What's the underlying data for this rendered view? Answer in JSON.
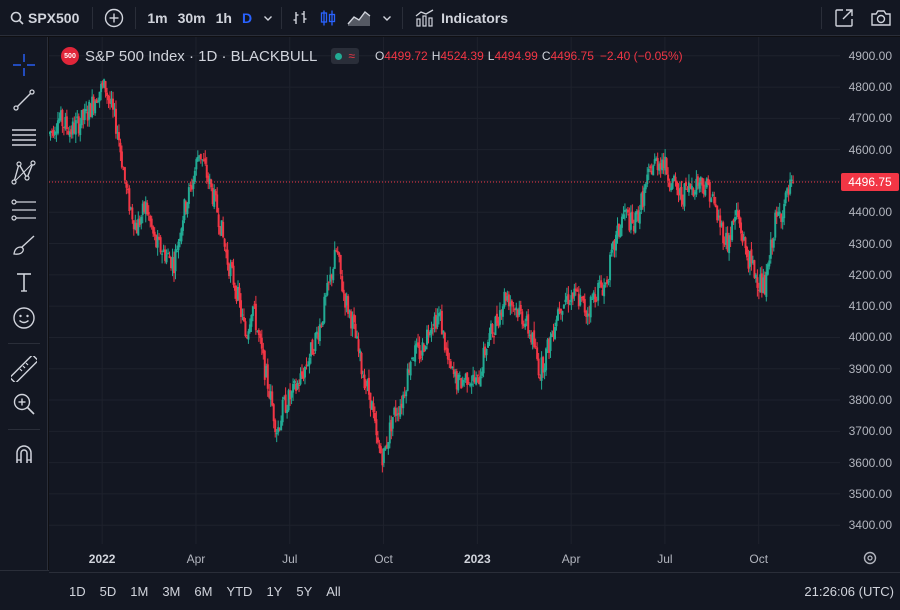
{
  "toolbar": {
    "symbol": "SPX500",
    "timeframes": [
      "1m",
      "30m",
      "1h",
      "D"
    ],
    "active_timeframe": "D",
    "indicators_label": "Indicators"
  },
  "legend": {
    "badge": "500",
    "title": "S&P 500 Index · 1D · BLACKBULL",
    "ohlc": [
      {
        "k": "O",
        "v": "4499.72"
      },
      {
        "k": "H",
        "v": "4524.39"
      },
      {
        "k": "L",
        "v": "4494.99"
      },
      {
        "k": "C",
        "v": "4496.75"
      }
    ],
    "change": "−2.40 (−0.05%)"
  },
  "last_price_label": "4496.75",
  "clock": "21:26:06 (UTC)",
  "ranges": [
    "1D",
    "5D",
    "1M",
    "3M",
    "6M",
    "YTD",
    "1Y",
    "5Y",
    "All"
  ],
  "colors": {
    "up": "#22ab94",
    "down": "#f23645",
    "accent": "#2962ff"
  },
  "chart_data": {
    "type": "candlestick",
    "title": "S&P 500 Index · 1D · BLACKBULL",
    "y_ticks": [
      3400,
      3500,
      3600,
      3700,
      3800,
      3900,
      4000,
      4100,
      4200,
      4300,
      4400,
      4500,
      4600,
      4700,
      4800,
      4900
    ],
    "y_tick_labels": [
      "3400.00",
      "3500.00",
      "3600.00",
      "3700.00",
      "3800.00",
      "3900.00",
      "4000.00",
      "4100.00",
      "4200.00",
      "4300.00",
      "4400.00",
      "4500.00",
      "4600.00",
      "4700.00",
      "4800.00",
      "4900.00"
    ],
    "ylim": [
      3340,
      4960
    ],
    "x_ticks": [
      {
        "label": "2022",
        "month": 3,
        "year": true
      },
      {
        "label": "Apr",
        "month": 6,
        "year": false
      },
      {
        "label": "Jul",
        "month": 9,
        "year": false
      },
      {
        "label": "Oct",
        "month": 12,
        "year": false
      },
      {
        "label": "2023",
        "month": 15,
        "year": true
      },
      {
        "label": "Apr",
        "month": 18,
        "year": false
      },
      {
        "label": "Jul",
        "month": 21,
        "year": false
      },
      {
        "label": "Oct",
        "month": 24,
        "year": false
      }
    ],
    "xlim_months": [
      1.3,
      26.6
    ],
    "last_close": 4496.75,
    "price_path": [
      [
        1.3,
        4650
      ],
      [
        1.6,
        4700
      ],
      [
        2.0,
        4660
      ],
      [
        2.5,
        4710
      ],
      [
        2.9,
        4790
      ],
      [
        3.1,
        4800
      ],
      [
        3.5,
        4660
      ],
      [
        3.8,
        4450
      ],
      [
        4.1,
        4350
      ],
      [
        4.4,
        4420
      ],
      [
        4.7,
        4300
      ],
      [
        5.0,
        4270
      ],
      [
        5.3,
        4240
      ],
      [
        5.6,
        4400
      ],
      [
        5.9,
        4500
      ],
      [
        6.1,
        4600
      ],
      [
        6.4,
        4500
      ],
      [
        6.7,
        4400
      ],
      [
        7.0,
        4250
      ],
      [
        7.3,
        4150
      ],
      [
        7.6,
        4000
      ],
      [
        7.8,
        4110
      ],
      [
        8.1,
        3950
      ],
      [
        8.3,
        3850
      ],
      [
        8.6,
        3700
      ],
      [
        8.8,
        3780
      ],
      [
        9.1,
        3820
      ],
      [
        9.4,
        3880
      ],
      [
        9.7,
        3960
      ],
      [
        10.0,
        4050
      ],
      [
        10.2,
        4140
      ],
      [
        10.5,
        4280
      ],
      [
        10.7,
        4150
      ],
      [
        11.0,
        4050
      ],
      [
        11.3,
        3900
      ],
      [
        11.6,
        3800
      ],
      [
        11.8,
        3650
      ],
      [
        12.0,
        3620
      ],
      [
        12.3,
        3750
      ],
      [
        12.6,
        3800
      ],
      [
        12.9,
        3950
      ],
      [
        13.2,
        3950
      ],
      [
        13.5,
        4050
      ],
      [
        13.8,
        4070
      ],
      [
        14.1,
        3900
      ],
      [
        14.4,
        3850
      ],
      [
        14.7,
        3880
      ],
      [
        15.0,
        3850
      ],
      [
        15.3,
        3980
      ],
      [
        15.6,
        4050
      ],
      [
        15.9,
        4140
      ],
      [
        16.2,
        4100
      ],
      [
        16.5,
        4060
      ],
      [
        16.8,
        3980
      ],
      [
        17.0,
        3890
      ],
      [
        17.3,
        3980
      ],
      [
        17.6,
        4100
      ],
      [
        17.9,
        4130
      ],
      [
        18.2,
        4130
      ],
      [
        18.5,
        4080
      ],
      [
        18.8,
        4150
      ],
      [
        19.1,
        4170
      ],
      [
        19.4,
        4300
      ],
      [
        19.7,
        4400
      ],
      [
        20.0,
        4350
      ],
      [
        20.3,
        4450
      ],
      [
        20.6,
        4550
      ],
      [
        20.9,
        4570
      ],
      [
        21.2,
        4500
      ],
      [
        21.5,
        4450
      ],
      [
        21.8,
        4480
      ],
      [
        22.1,
        4500
      ],
      [
        22.4,
        4480
      ],
      [
        22.7,
        4380
      ],
      [
        23.0,
        4300
      ],
      [
        23.3,
        4400
      ],
      [
        23.6,
        4270
      ],
      [
        23.9,
        4200
      ],
      [
        24.2,
        4150
      ],
      [
        24.5,
        4360
      ],
      [
        24.8,
        4420
      ],
      [
        25.1,
        4496.75
      ]
    ]
  }
}
